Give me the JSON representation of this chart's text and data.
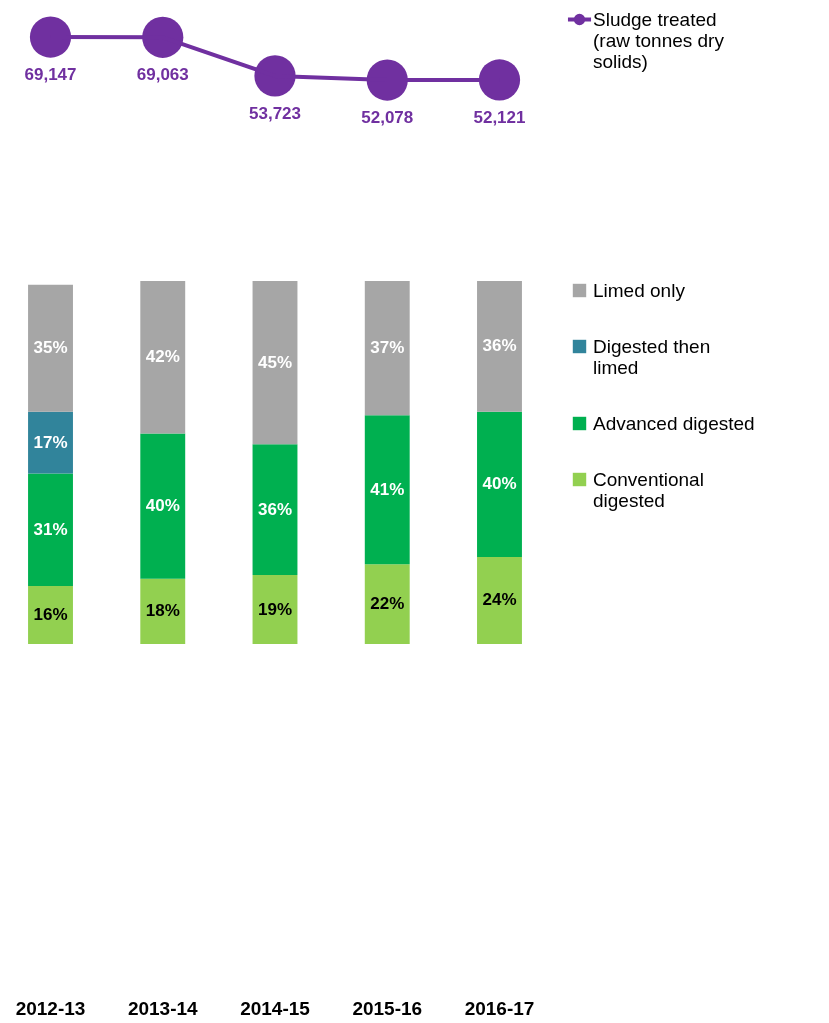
{
  "chart_data": [
    {
      "type": "line",
      "categories": [
        "2012-13",
        "2013-14",
        "2014-15",
        "2015-16",
        "2016-17"
      ],
      "series": [
        {
          "name": "Sludge treated (raw tonnes dry solids)",
          "color": "#7030a0",
          "values": [
            69147,
            69063,
            53723,
            52078,
            52121
          ],
          "value_labels": [
            "69,147",
            "69,063",
            "53,723",
            "52,078",
            "52,121"
          ]
        }
      ],
      "marker": "circle",
      "legend": "right",
      "tick_labels": false
    },
    {
      "type": "bar",
      "stacked": true,
      "categories": [
        "2012-13",
        "2013-14",
        "2014-15",
        "2015-16",
        "2016-17"
      ],
      "series": [
        {
          "name": "Conventional digested",
          "color": "#92d050",
          "values": [
            16,
            18,
            19,
            22,
            24
          ],
          "value_labels": [
            "16%",
            "18%",
            "19%",
            "22%",
            "24%"
          ]
        },
        {
          "name": "Advanced digested",
          "color": "#00b050",
          "values": [
            31,
            40,
            36,
            41,
            40
          ],
          "value_labels": [
            "31%",
            "40%",
            "36%",
            "41%",
            "40%"
          ]
        },
        {
          "name": "Digested then limed",
          "color": "#31849b",
          "values": [
            17,
            null,
            null,
            null,
            null
          ],
          "value_labels": [
            "17%",
            null,
            null,
            null,
            null
          ]
        },
        {
          "name": "Limed only",
          "color": "#a6a6a6",
          "values": [
            35,
            42,
            45,
            37,
            36
          ],
          "value_labels": [
            "35%",
            "42%",
            "45%",
            "37%",
            "36%"
          ]
        }
      ],
      "legend": "right"
    }
  ]
}
